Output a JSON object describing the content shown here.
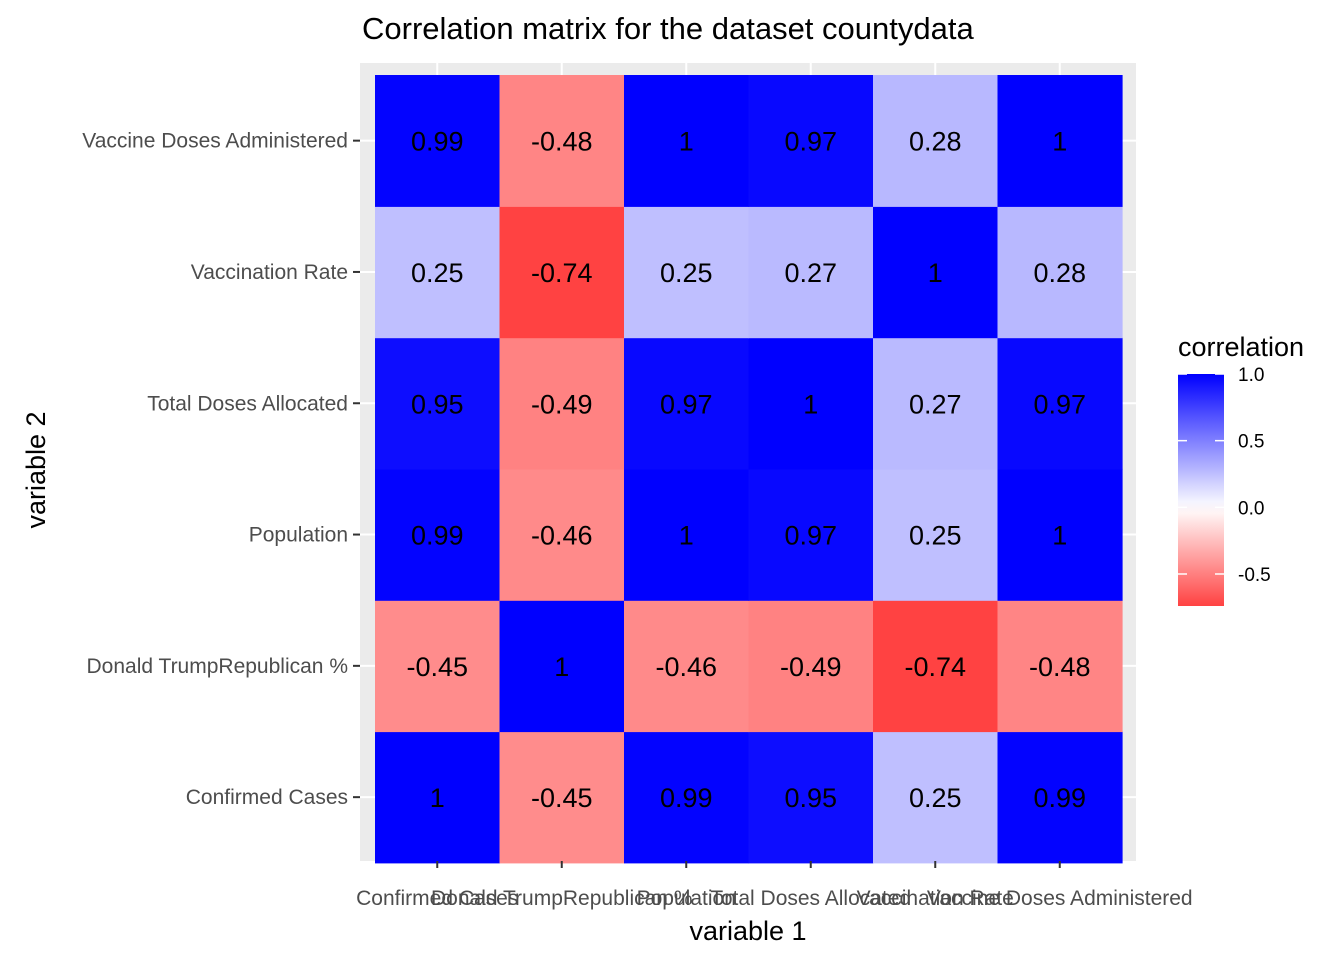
{
  "chart_data": {
    "type": "heatmap",
    "title": "Correlation matrix for the dataset countydata",
    "xlabel": "variable 1",
    "ylabel": "variable 2",
    "x_categories": [
      "Confirmed Cases",
      "Donald TrumpRepublican %",
      "Population",
      "Total Doses Allocated",
      "Vaccination Rate",
      "Vaccine Doses Administered"
    ],
    "y_categories": [
      "Confirmed Cases",
      "Donald TrumpRepublican %",
      "Population",
      "Total Doses Allocated",
      "Vaccination Rate",
      "Vaccine Doses Administered"
    ],
    "values": [
      [
        1,
        -0.45,
        0.99,
        0.95,
        0.25,
        0.99
      ],
      [
        -0.45,
        1,
        -0.46,
        -0.49,
        -0.74,
        -0.48
      ],
      [
        0.99,
        -0.46,
        1,
        0.97,
        0.25,
        1
      ],
      [
        0.95,
        -0.49,
        0.97,
        1,
        0.27,
        0.97
      ],
      [
        0.25,
        -0.74,
        0.25,
        0.27,
        1,
        0.28
      ],
      [
        0.99,
        -0.48,
        1,
        0.97,
        0.28,
        1
      ]
    ],
    "labels": [
      [
        "1",
        "-0.45",
        "0.99",
        "0.95",
        "0.25",
        "0.99"
      ],
      [
        "-0.45",
        "1",
        "-0.46",
        "-0.49",
        "-0.74",
        "-0.48"
      ],
      [
        "0.99",
        "-0.46",
        "1",
        "0.97",
        "0.25",
        "1"
      ],
      [
        "0.95",
        "-0.49",
        "0.97",
        "1",
        "0.27",
        "0.97"
      ],
      [
        "0.25",
        "-0.74",
        "0.25",
        "0.27",
        "1",
        "0.28"
      ],
      [
        "0.99",
        "-0.48",
        "1",
        "0.97",
        "0.28",
        "1"
      ]
    ],
    "legend": {
      "title": "correlation",
      "ticks": [
        1.0,
        0.5,
        0.0,
        -0.5
      ],
      "tick_labels": [
        "1.0",
        "0.5",
        "0.0",
        "-0.5"
      ],
      "range": [
        -0.74,
        1.0
      ],
      "placement": "right"
    },
    "colors": {
      "low": "#ff0000",
      "mid": "#ffffff",
      "high": "#0000ff",
      "panel_background": "#ebebeb",
      "grid": "#ffffff"
    },
    "grid": true
  }
}
